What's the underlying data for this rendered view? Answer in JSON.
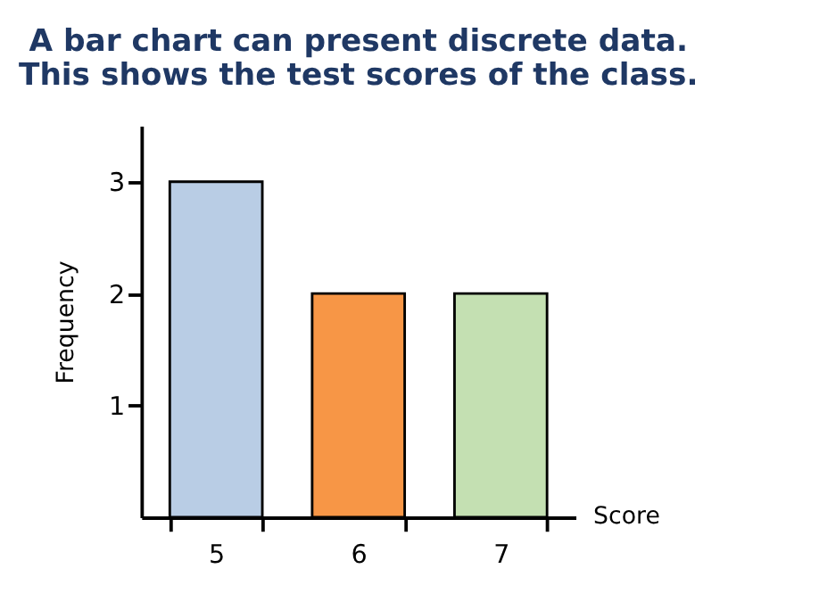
{
  "chart_data": {
    "type": "bar",
    "title": [
      "A bar chart can present discrete data.",
      "This shows the test scores of the class."
    ],
    "categories": [
      "5",
      "6",
      "7"
    ],
    "values": [
      3,
      2,
      2
    ],
    "colors": [
      "#b9cde5",
      "#f79646",
      "#c4e0b2"
    ],
    "xlabel": "Score",
    "ylabel": "Frequency",
    "ylim": [
      0,
      3.5
    ],
    "yticks": [
      1,
      2,
      3
    ],
    "grid": false
  }
}
